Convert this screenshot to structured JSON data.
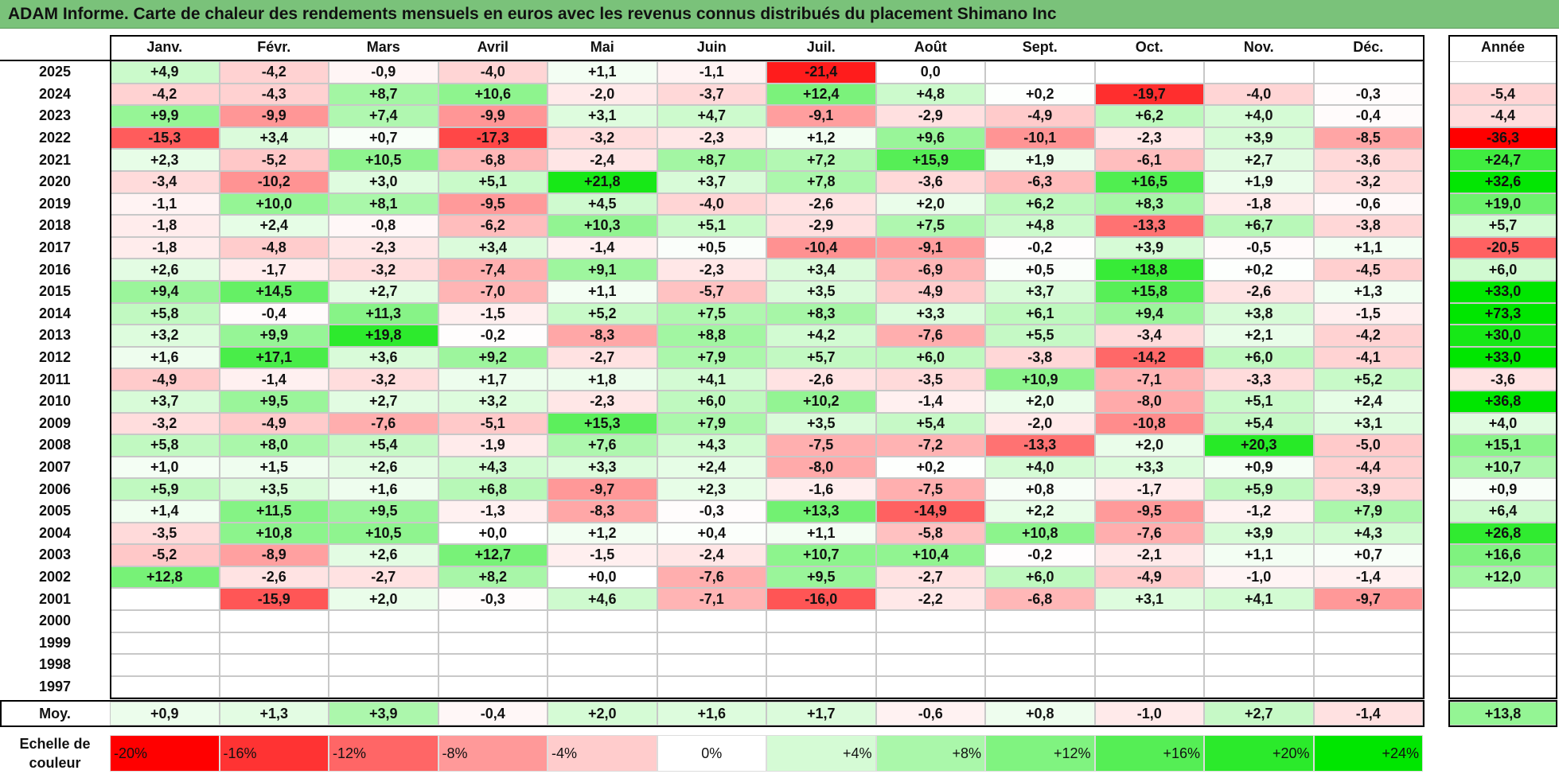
{
  "title": "ADAM Informe. Carte de chaleur des rendements mensuels en euros avec les revenus connus distribués du placement Shimano Inc",
  "chart_data": {
    "type": "heatmap",
    "columns": [
      "Janv.",
      "Févr.",
      "Mars",
      "Avril",
      "Mai",
      "Juin",
      "Juil.",
      "Août",
      "Sept.",
      "Oct.",
      "Nov.",
      "Déc."
    ],
    "year_column_label": "Année",
    "rows": [
      {
        "year": "2025",
        "months": [
          "+4,9",
          "-4,2",
          "-0,9",
          "-4,0",
          "+1,1",
          "-1,1",
          "-21,4",
          "0,0",
          "",
          "",
          "",
          ""
        ],
        "annual": ""
      },
      {
        "year": "2024",
        "months": [
          "-4,2",
          "-4,3",
          "+8,7",
          "+10,6",
          "-2,0",
          "-3,7",
          "+12,4",
          "+4,8",
          "+0,2",
          "-19,7",
          "-4,0",
          "-0,3"
        ],
        "annual": "-5,4"
      },
      {
        "year": "2023",
        "months": [
          "+9,9",
          "-9,9",
          "+7,4",
          "-9,9",
          "+3,1",
          "+4,7",
          "-9,1",
          "-2,9",
          "-4,9",
          "+6,2",
          "+4,0",
          "-0,4"
        ],
        "annual": "-4,4"
      },
      {
        "year": "2022",
        "months": [
          "-15,3",
          "+3,4",
          "+0,7",
          "-17,3",
          "-3,2",
          "-2,3",
          "+1,2",
          "+9,6",
          "-10,1",
          "-2,3",
          "+3,9",
          "-8,5"
        ],
        "annual": "-36,3"
      },
      {
        "year": "2021",
        "months": [
          "+2,3",
          "-5,2",
          "+10,5",
          "-6,8",
          "-2,4",
          "+8,7",
          "+7,2",
          "+15,9",
          "+1,9",
          "-6,1",
          "+2,7",
          "-3,6"
        ],
        "annual": "+24,7"
      },
      {
        "year": "2020",
        "months": [
          "-3,4",
          "-10,2",
          "+3,0",
          "+5,1",
          "+21,8",
          "+3,7",
          "+7,8",
          "-3,6",
          "-6,3",
          "+16,5",
          "+1,9",
          "-3,2"
        ],
        "annual": "+32,6"
      },
      {
        "year": "2019",
        "months": [
          "-1,1",
          "+10,0",
          "+8,1",
          "-9,5",
          "+4,5",
          "-4,0",
          "-2,6",
          "+2,0",
          "+6,2",
          "+8,3",
          "-1,8",
          "-0,6"
        ],
        "annual": "+19,0"
      },
      {
        "year": "2018",
        "months": [
          "-1,8",
          "+2,4",
          "-0,8",
          "-6,2",
          "+10,3",
          "+5,1",
          "-2,9",
          "+7,5",
          "+4,8",
          "-13,3",
          "+6,7",
          "-3,8"
        ],
        "annual": "+5,7"
      },
      {
        "year": "2017",
        "months": [
          "-1,8",
          "-4,8",
          "-2,3",
          "+3,4",
          "-1,4",
          "+0,5",
          "-10,4",
          "-9,1",
          "-0,2",
          "+3,9",
          "-0,5",
          "+1,1"
        ],
        "annual": "-20,5"
      },
      {
        "year": "2016",
        "months": [
          "+2,6",
          "-1,7",
          "-3,2",
          "-7,4",
          "+9,1",
          "-2,3",
          "+3,4",
          "-6,9",
          "+0,5",
          "+18,8",
          "+0,2",
          "-4,5"
        ],
        "annual": "+6,0"
      },
      {
        "year": "2015",
        "months": [
          "+9,4",
          "+14,5",
          "+2,7",
          "-7,0",
          "+1,1",
          "-5,7",
          "+3,5",
          "-4,9",
          "+3,7",
          "+15,8",
          "-2,6",
          "+1,3"
        ],
        "annual": "+33,0"
      },
      {
        "year": "2014",
        "months": [
          "+5,8",
          "-0,4",
          "+11,3",
          "-1,5",
          "+5,2",
          "+7,5",
          "+8,3",
          "+3,3",
          "+6,1",
          "+9,4",
          "+3,8",
          "-1,5"
        ],
        "annual": "+73,3"
      },
      {
        "year": "2013",
        "months": [
          "+3,2",
          "+9,9",
          "+19,8",
          "-0,2",
          "-8,3",
          "+8,8",
          "+4,2",
          "-7,6",
          "+5,5",
          "-3,4",
          "+2,1",
          "-4,2"
        ],
        "annual": "+30,0"
      },
      {
        "year": "2012",
        "months": [
          "+1,6",
          "+17,1",
          "+3,6",
          "+9,2",
          "-2,7",
          "+7,9",
          "+5,7",
          "+6,0",
          "-3,8",
          "-14,2",
          "+6,0",
          "-4,1"
        ],
        "annual": "+33,0"
      },
      {
        "year": "2011",
        "months": [
          "-4,9",
          "-1,4",
          "-3,2",
          "+1,7",
          "+1,8",
          "+4,1",
          "-2,6",
          "-3,5",
          "+10,9",
          "-7,1",
          "-3,3",
          "+5,2"
        ],
        "annual": "-3,6"
      },
      {
        "year": "2010",
        "months": [
          "+3,7",
          "+9,5",
          "+2,7",
          "+3,2",
          "-2,3",
          "+6,0",
          "+10,2",
          "-1,4",
          "+2,0",
          "-8,0",
          "+5,1",
          "+2,4"
        ],
        "annual": "+36,8"
      },
      {
        "year": "2009",
        "months": [
          "-3,2",
          "-4,9",
          "-7,6",
          "-5,1",
          "+15,3",
          "+7,9",
          "+3,5",
          "+5,4",
          "-2,0",
          "-10,8",
          "+5,4",
          "+3,1"
        ],
        "annual": "+4,0"
      },
      {
        "year": "2008",
        "months": [
          "+5,8",
          "+8,0",
          "+5,4",
          "-1,9",
          "+7,6",
          "+4,3",
          "-7,5",
          "-7,2",
          "-13,3",
          "+2,0",
          "+20,3",
          "-5,0"
        ],
        "annual": "+15,1"
      },
      {
        "year": "2007",
        "months": [
          "+1,0",
          "+1,5",
          "+2,6",
          "+4,3",
          "+3,3",
          "+2,4",
          "-8,0",
          "+0,2",
          "+4,0",
          "+3,3",
          "+0,9",
          "-4,4"
        ],
        "annual": "+10,7"
      },
      {
        "year": "2006",
        "months": [
          "+5,9",
          "+3,5",
          "+1,6",
          "+6,8",
          "-9,7",
          "+2,3",
          "-1,6",
          "-7,5",
          "+0,8",
          "-1,7",
          "+5,9",
          "-3,9"
        ],
        "annual": "+0,9"
      },
      {
        "year": "2005",
        "months": [
          "+1,4",
          "+11,5",
          "+9,5",
          "-1,3",
          "-8,3",
          "-0,3",
          "+13,3",
          "-14,9",
          "+2,2",
          "-9,5",
          "-1,2",
          "+7,9"
        ],
        "annual": "+6,4"
      },
      {
        "year": "2004",
        "months": [
          "-3,5",
          "+10,8",
          "+10,5",
          "+0,0",
          "+1,2",
          "+0,4",
          "+1,1",
          "-5,8",
          "+10,8",
          "-7,6",
          "+3,9",
          "+4,3"
        ],
        "annual": "+26,8"
      },
      {
        "year": "2003",
        "months": [
          "-5,2",
          "-8,9",
          "+2,6",
          "+12,7",
          "-1,5",
          "-2,4",
          "+10,7",
          "+10,4",
          "-0,2",
          "-2,1",
          "+1,1",
          "+0,7"
        ],
        "annual": "+16,6"
      },
      {
        "year": "2002",
        "months": [
          "+12,8",
          "-2,6",
          "-2,7",
          "+8,2",
          "+0,0",
          "-7,6",
          "+9,5",
          "-2,7",
          "+6,0",
          "-4,9",
          "-1,0",
          "-1,4"
        ],
        "annual": "+12,0"
      },
      {
        "year": "2001",
        "months": [
          "",
          "-15,9",
          "+2,0",
          "-0,3",
          "+4,6",
          "-7,1",
          "-16,0",
          "-2,2",
          "-6,8",
          "+3,1",
          "+4,1",
          "-9,7"
        ],
        "annual": ""
      },
      {
        "year": "2000",
        "months": [
          "",
          "",
          "",
          "",
          "",
          "",
          "",
          "",
          "",
          "",
          "",
          ""
        ],
        "annual": ""
      },
      {
        "year": "1999",
        "months": [
          "",
          "",
          "",
          "",
          "",
          "",
          "",
          "",
          "",
          "",
          "",
          ""
        ],
        "annual": ""
      },
      {
        "year": "1998",
        "months": [
          "",
          "",
          "",
          "",
          "",
          "",
          "",
          "",
          "",
          "",
          "",
          ""
        ],
        "annual": ""
      },
      {
        "year": "1997",
        "months": [
          "",
          "",
          "",
          "",
          "",
          "",
          "",
          "",
          "",
          "",
          "",
          ""
        ],
        "annual": ""
      }
    ],
    "average": {
      "label": "Moy.",
      "months": [
        "+0,9",
        "+1,3",
        "+3,9",
        "-0,4",
        "+2,0",
        "+1,6",
        "+1,7",
        "-0,6",
        "+0,8",
        "-1,0",
        "+2,7",
        "-1,4"
      ],
      "annual": "+13,8"
    },
    "color_scale": {
      "label": "Echelle de couleur",
      "steps": [
        "-20%",
        "-16%",
        "-12%",
        "-8%",
        "-4%",
        "0%",
        "+4%",
        "+8%",
        "+12%",
        "+16%",
        "+20%",
        "+24%"
      ],
      "negative_color": "#ff0000",
      "positive_color": "#00e600",
      "neutral_color": "#ffffff"
    }
  }
}
